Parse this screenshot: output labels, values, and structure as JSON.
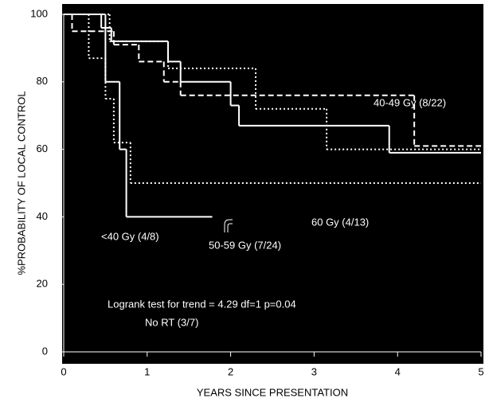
{
  "chart_data": {
    "type": "step",
    "ylabel": "%PROBABILITY OF LOCAL CONTROL",
    "xlabel": "YEARS SINCE PRESENTATION",
    "annotation": "Logrank test for trend = 4.29 df=1 p=0.04",
    "xlim": [
      0,
      5
    ],
    "xticks": [
      0,
      1,
      2,
      3,
      4,
      5
    ],
    "ylim": [
      0,
      100
    ],
    "yticks": [
      0,
      20,
      40,
      60,
      80,
      100
    ],
    "series": [
      {
        "name": "No RT (3/7)",
        "color": "#ffffff",
        "style": "solid",
        "x": [
          0,
          0.5,
          0.67,
          0.75,
          1.78
        ],
        "values": [
          100,
          80,
          60,
          40,
          40
        ]
      },
      {
        "name": "<40 Gy (4/8)",
        "color": "#ffffff",
        "style": "dotted",
        "x": [
          0,
          0.3,
          0.5,
          0.6,
          0.8,
          5
        ],
        "values": [
          100,
          87,
          75,
          62,
          50,
          50
        ]
      },
      {
        "name": "50-59 Gy (7/24)",
        "color": "#ffffff",
        "style": "solid",
        "x": [
          0,
          0.45,
          0.57,
          1.25,
          1.4,
          2.0,
          2.1,
          3.9,
          5
        ],
        "values": [
          100,
          96,
          92,
          86,
          80,
          73,
          67,
          59,
          59
        ]
      },
      {
        "name": "60 Gy (4/13)",
        "color": "#ffffff",
        "style": "dashed",
        "x": [
          0,
          0.1,
          0.6,
          0.9,
          1.2,
          1.4,
          4.2,
          5
        ],
        "values": [
          100,
          95,
          91,
          86,
          80,
          76,
          61,
          61
        ]
      },
      {
        "name": "40-49 Gy (8/22)",
        "color": "#ffffff",
        "style": "dotted",
        "x": [
          0,
          0.55,
          1.25,
          2.3,
          3.15,
          5
        ],
        "values": [
          100,
          92,
          84,
          72,
          60,
          60
        ]
      }
    ]
  }
}
